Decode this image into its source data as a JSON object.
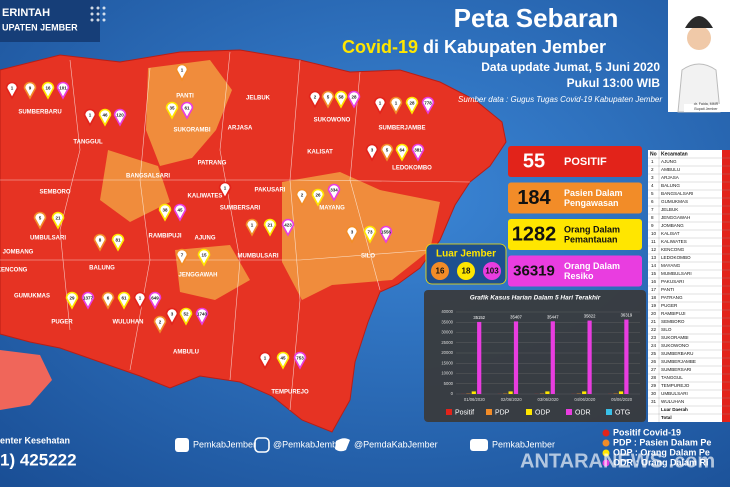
{
  "logo": {
    "line1": "ERINTAH",
    "line2": "UPATEN JEMBER"
  },
  "header": {
    "title": "Peta Sebaran",
    "subtitle_highlight": "Covid-19",
    "subtitle_rest": "di Kabupaten Jember",
    "update": "Data update Jumat, 5 Juni 2020",
    "time": "Pukul 13:00 WIB",
    "source": "Sumber data : Gugus Tugas Covid-19 Kabupaten Jember",
    "portrait_name": "dr. Faida, MMR",
    "portrait_role": "Bupati Jember"
  },
  "stats": [
    {
      "value": 55,
      "lines": [
        "POSITIF"
      ],
      "color": "#e2231a",
      "text_color": "#ffffff"
    },
    {
      "value": 184,
      "lines": [
        "Pasien Dalam",
        "Pengawasan"
      ],
      "color": "#f28c28",
      "text_color": "#ffffff"
    },
    {
      "value": 1282,
      "lines": [
        "Orang Dalam",
        "Pemantauan"
      ],
      "color": "#ffe600",
      "text_color": "#111111"
    },
    {
      "value": 36319,
      "lines": [
        "Orang Dalam",
        "Resiko"
      ],
      "color": "#e93de0",
      "text_color": "#ffffff"
    }
  ],
  "luar_jember": {
    "title": "Luar Jember",
    "items": [
      {
        "value": 16,
        "color": "#f28c28"
      },
      {
        "value": 18,
        "color": "#ffe600"
      },
      {
        "value": 103,
        "color": "#e93de0"
      }
    ]
  },
  "map": {
    "districts": [
      "SUMBERBARU",
      "TANGGUL",
      "PANTI",
      "JELBUK",
      "SUKOWONO",
      "SUMBERJAMBE",
      "SUKORAMBI",
      "ARJASA",
      "KALISAT",
      "LEDOKOMBO",
      "SEMBORO",
      "BANGSALSARI",
      "PATRANG",
      "KALIWATES",
      "SUMBERSARI",
      "PAKUSARI",
      "MAYANG",
      "RAMBIPUJI",
      "AJUNG",
      "UMBULSARI",
      "JOMBANG",
      "KENCONG",
      "BALUNG",
      "JENGGAWAH",
      "MUMBULSARI",
      "SILO",
      "GUMUKMAS",
      "PUGER",
      "WULUHAN",
      "AMBULU",
      "TEMPUREJO"
    ],
    "pins": [
      {
        "value": 1,
        "color": "#e2231a"
      },
      {
        "value": 9,
        "color": "#f28c28"
      },
      {
        "value": 16,
        "color": "#ffe600"
      },
      {
        "value": 101,
        "color": "#e93de0"
      },
      {
        "value": 1,
        "color": "#e2231a"
      },
      {
        "value": 46,
        "color": "#ffe600"
      },
      {
        "value": 120,
        "color": "#e93de0"
      },
      {
        "value": 1,
        "color": "#f28c28"
      },
      {
        "value": 35,
        "color": "#ffe600"
      },
      {
        "value": 61,
        "color": "#e93de0"
      },
      {
        "value": 2,
        "color": "#e2231a"
      },
      {
        "value": 5,
        "color": "#f28c28"
      },
      {
        "value": 58,
        "color": "#ffe600"
      },
      {
        "value": 28,
        "color": "#e93de0"
      },
      {
        "value": 1,
        "color": "#e2231a"
      },
      {
        "value": 1,
        "color": "#f28c28"
      },
      {
        "value": 28,
        "color": "#ffe600"
      },
      {
        "value": 778,
        "color": "#e93de0"
      },
      {
        "value": 3,
        "color": "#e2231a"
      },
      {
        "value": 5,
        "color": "#f28c28"
      },
      {
        "value": 64,
        "color": "#ffe600"
      },
      {
        "value": 381,
        "color": "#e93de0"
      },
      {
        "value": 3,
        "color": "#f28c28"
      },
      {
        "value": 73,
        "color": "#ffe600"
      },
      {
        "value": 1556,
        "color": "#e93de0"
      },
      {
        "value": 1,
        "color": "#e2231a"
      },
      {
        "value": 45,
        "color": "#ffe600"
      },
      {
        "value": 753,
        "color": "#e93de0"
      },
      {
        "value": 2,
        "color": "#f28c28"
      },
      {
        "value": 3,
        "color": "#e2231a"
      },
      {
        "value": 52,
        "color": "#ffe600"
      },
      {
        "value": 1740,
        "color": "#e93de0"
      },
      {
        "value": 6,
        "color": "#f28c28"
      },
      {
        "value": 61,
        "color": "#ffe600"
      },
      {
        "value": 1,
        "color": "#e2231a"
      },
      {
        "value": 649,
        "color": "#e93de0"
      },
      {
        "value": 29,
        "color": "#ffe600"
      },
      {
        "value": 1377,
        "color": "#e93de0"
      },
      {
        "value": 8,
        "color": "#f28c28"
      },
      {
        "value": 81,
        "color": "#ffe600"
      },
      {
        "value": 38,
        "color": "#ffe600"
      },
      {
        "value": 45,
        "color": "#e93de0"
      },
      {
        "value": 2,
        "color": "#f28c28"
      },
      {
        "value": 26,
        "color": "#ffe600"
      },
      {
        "value": 334,
        "color": "#e93de0"
      },
      {
        "value": 1,
        "color": "#f28c28"
      },
      {
        "value": 21,
        "color": "#ffe600"
      },
      {
        "value": 423,
        "color": "#e93de0"
      },
      {
        "value": 5,
        "color": "#f28c28"
      },
      {
        "value": 21,
        "color": "#ffe600"
      },
      {
        "value": 1,
        "color": "#e2231a"
      },
      {
        "value": 7,
        "color": "#f28c28"
      },
      {
        "value": 15,
        "color": "#ffe600"
      }
    ]
  },
  "chart_data": {
    "type": "bar",
    "title": "Grafik Kasus Harian Dalam 5 Hari Terakhir",
    "categories": [
      "01/06/2020",
      "02/06/2020",
      "03/06/2020",
      "04/06/2020",
      "05/06/2020"
    ],
    "series": [
      {
        "name": "Positif",
        "color": "#e2231a",
        "values": [
          47,
          49,
          51,
          53,
          55
        ]
      },
      {
        "name": "PDP",
        "color": "#f28c28",
        "values": [
          172,
          175,
          178,
          181,
          184
        ]
      },
      {
        "name": "ODP",
        "color": "#ffe600",
        "values": [
          1270,
          1274,
          1276,
          1279,
          1282
        ]
      },
      {
        "name": "ODR",
        "color": "#e93de0",
        "values": [
          35152,
          35407,
          35447,
          35822,
          36319
        ],
        "labels": true
      },
      {
        "name": "OTG",
        "color": "#39c0e8",
        "values": [
          0,
          0,
          0,
          0,
          0
        ]
      }
    ],
    "ylim": [
      0,
      40000
    ],
    "yticks": [
      0,
      5000,
      10000,
      15000,
      20000,
      25000,
      30000,
      35000,
      40000
    ],
    "grid": true
  },
  "table": {
    "header": [
      "No",
      "Kecamatan"
    ],
    "rows": [
      [
        "1",
        "AJUNG"
      ],
      [
        "2",
        "AMBULU"
      ],
      [
        "3",
        "ARJASA"
      ],
      [
        "4",
        "BALUNG"
      ],
      [
        "5",
        "BANGSALSARI"
      ],
      [
        "6",
        "GUMUKMAS"
      ],
      [
        "7",
        "JELBUK"
      ],
      [
        "8",
        "JENGGAWAH"
      ],
      [
        "9",
        "JOMBANG"
      ],
      [
        "10",
        "KALISAT"
      ],
      [
        "11",
        "KALIWATES"
      ],
      [
        "12",
        "KENCONG"
      ],
      [
        "13",
        "LEDOKOMBO"
      ],
      [
        "14",
        "MAYANG"
      ],
      [
        "15",
        "MUMBULSARI"
      ],
      [
        "16",
        "PAKUSARI"
      ],
      [
        "17",
        "PANTI"
      ],
      [
        "18",
        "PATRANG"
      ],
      [
        "19",
        "PUGER"
      ],
      [
        "20",
        "RAMBIPUJI"
      ],
      [
        "21",
        "SEMBORO"
      ],
      [
        "22",
        "SILO"
      ],
      [
        "23",
        "SUKORAMBI"
      ],
      [
        "24",
        "SUKOWONO"
      ],
      [
        "25",
        "SUMBERBARU"
      ],
      [
        "26",
        "SUMBERJAMBE"
      ],
      [
        "27",
        "SUMBERSARI"
      ],
      [
        "28",
        "TANGGUL"
      ],
      [
        "29",
        "TEMPUREJO"
      ],
      [
        "30",
        "UMBULSARI"
      ],
      [
        "31",
        "WULUHAN"
      ],
      [
        "",
        "Luar Daerah"
      ],
      [
        "",
        "Total"
      ]
    ]
  },
  "legend": [
    {
      "label": "Positif Covid-19",
      "color": "#e2231a"
    },
    {
      "label": "PDP : Pasien Dalam Pe",
      "color": "#f28c28"
    },
    {
      "label": "ODP : Orang Dalam Pe",
      "color": "#ffe600"
    },
    {
      "label": "ODR : Orang Dalam Ri",
      "color": "#e93de0"
    }
  ],
  "footer": {
    "contact_label": "enter Kesehatan",
    "contact_phone": "1) 425222",
    "facebook": "PemkabJember",
    "instagram": "@PemkabJember",
    "twitter": "@PemdaKabJember",
    "youtube": "PemkabJember",
    "watermark": "ANTARANEWS .com"
  }
}
